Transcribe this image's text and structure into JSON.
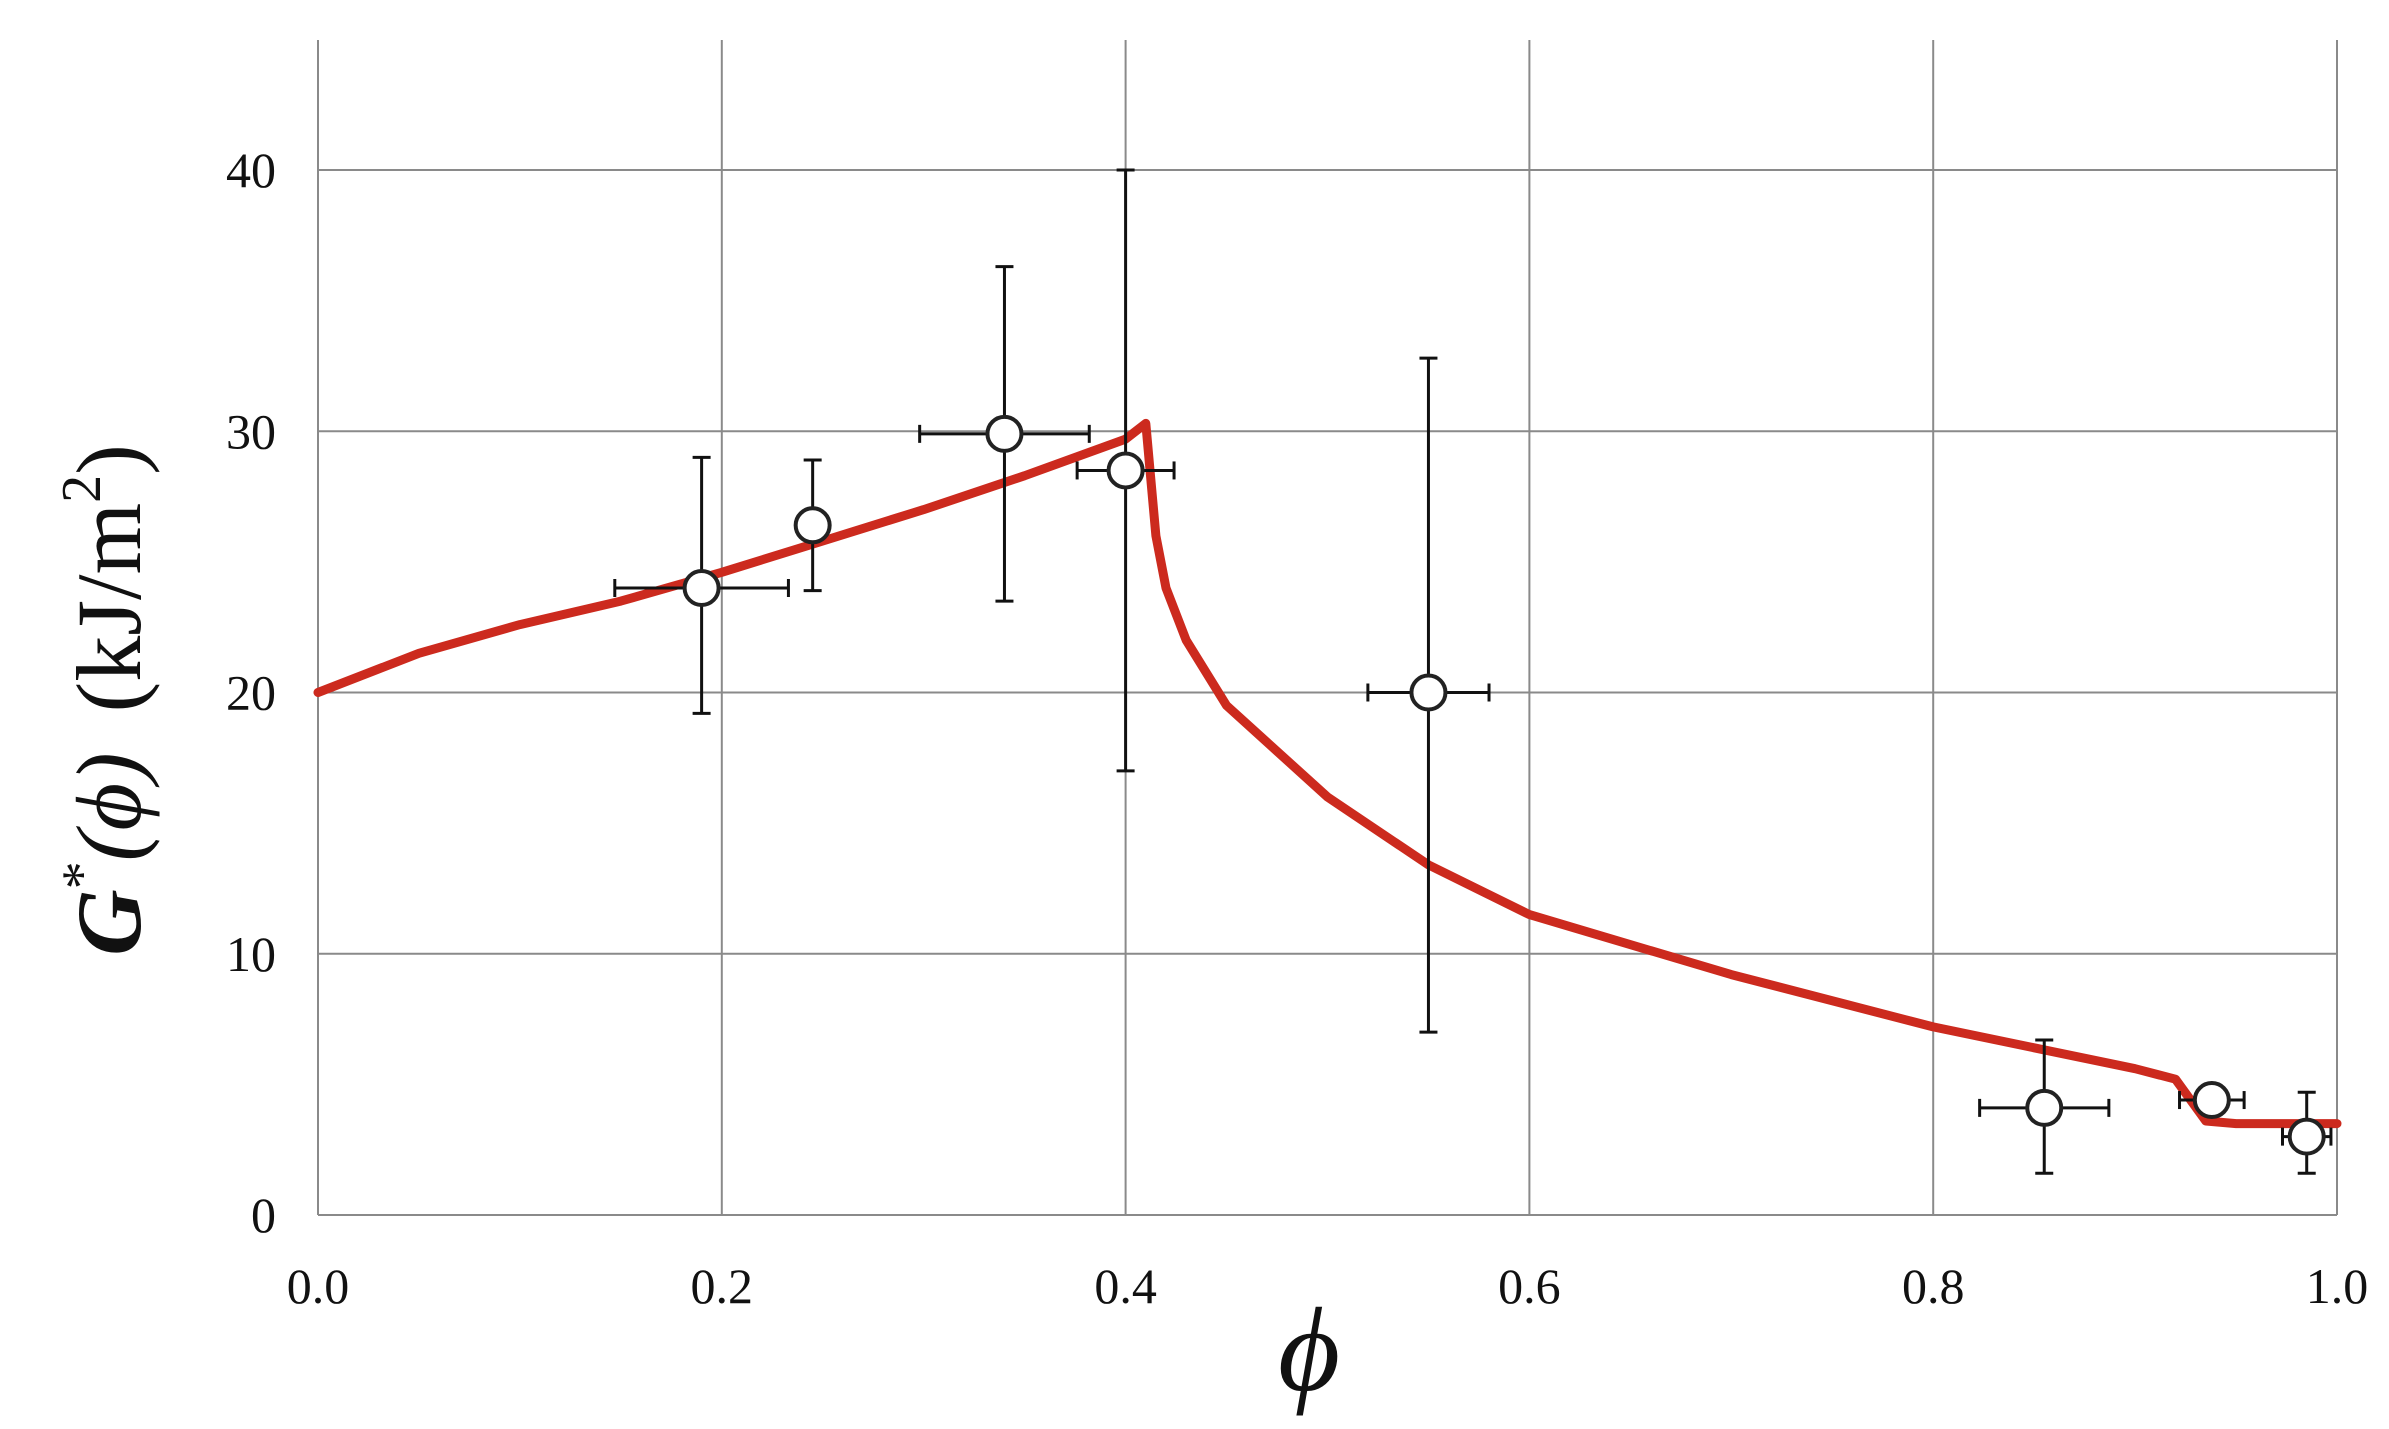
{
  "chart_data": {
    "type": "scatter",
    "title": "",
    "xlabel": "ϕ",
    "ylabel": {
      "symbol": "G",
      "superscript": "*",
      "argument": "(ϕ)",
      "units_prefix": "(kJ/m",
      "units_exponent": "2",
      "units_suffix": ")"
    },
    "xlim": [
      0.0,
      1.0
    ],
    "ylim": [
      0,
      45
    ],
    "xticks": [
      0.0,
      0.2,
      0.4,
      0.6,
      0.8,
      1.0
    ],
    "xtick_labels": [
      "0.0",
      "0.2",
      "0.4",
      "0.6",
      "0.8",
      "1.0"
    ],
    "yticks": [
      0,
      10,
      20,
      30,
      40
    ],
    "ytick_labels": [
      "0",
      "10",
      "20",
      "30",
      "40"
    ],
    "grid": true,
    "colors": {
      "curve": "#cc2a1e",
      "marker_edge": "#222222",
      "marker_fill": "#ffffff",
      "grid": "#8a8a8a"
    },
    "series": [
      {
        "kind": "scatter-with-error-bars",
        "points": [
          {
            "x": 0.19,
            "y": 24.0,
            "xerr": 0.043,
            "yerr_low": 4.8,
            "yerr_high": 5.0
          },
          {
            "x": 0.245,
            "y": 26.4,
            "xerr": 0.0,
            "yerr_low": 2.5,
            "yerr_high": 2.5
          },
          {
            "x": 0.34,
            "y": 29.9,
            "xerr": 0.042,
            "yerr_low": 6.4,
            "yerr_high": 6.4
          },
          {
            "x": 0.4,
            "y": 28.5,
            "xerr": 0.024,
            "yerr_low": 11.5,
            "yerr_high": 11.5
          },
          {
            "x": 0.55,
            "y": 20.0,
            "xerr": 0.03,
            "yerr_low": 13.0,
            "yerr_high": 12.8
          },
          {
            "x": 0.855,
            "y": 4.1,
            "xerr": 0.032,
            "yerr_low": 2.5,
            "yerr_high": 2.6
          },
          {
            "x": 0.938,
            "y": 4.4,
            "xerr": 0.016,
            "yerr_low": 0.0,
            "yerr_high": 0.0
          },
          {
            "x": 0.985,
            "y": 3.0,
            "xerr": 0.012,
            "yerr_low": 1.4,
            "yerr_high": 1.7
          }
        ]
      },
      {
        "kind": "line",
        "x": [
          0.0,
          0.05,
          0.1,
          0.15,
          0.2,
          0.25,
          0.3,
          0.35,
          0.4,
          0.41,
          0.415,
          0.42,
          0.43,
          0.45,
          0.5,
          0.55,
          0.6,
          0.7,
          0.8,
          0.9,
          0.92,
          0.935,
          0.95,
          1.0
        ],
        "y": [
          20.0,
          21.5,
          22.6,
          23.5,
          24.6,
          25.8,
          27.0,
          28.3,
          29.7,
          30.3,
          26.0,
          24.0,
          22.0,
          19.5,
          16.0,
          13.4,
          11.5,
          9.2,
          7.2,
          5.6,
          5.2,
          3.6,
          3.5,
          3.5
        ]
      }
    ]
  }
}
